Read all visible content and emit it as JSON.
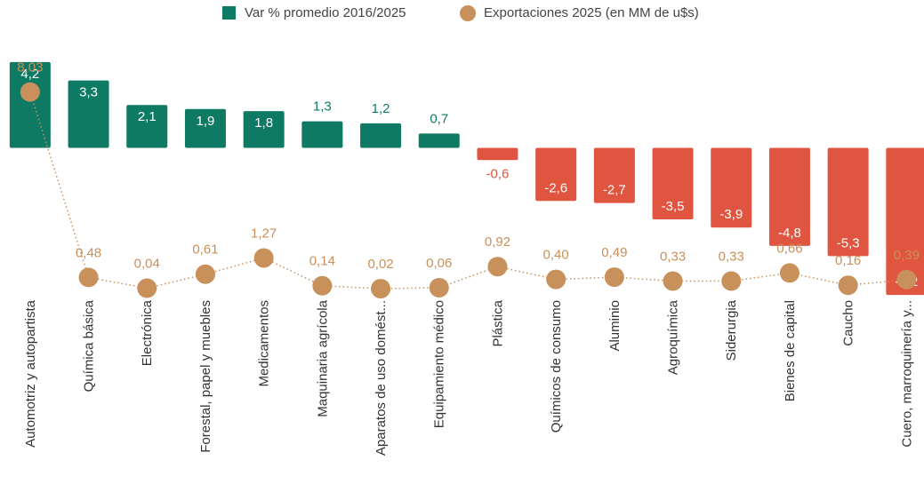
{
  "chart_data": {
    "type": "bar-line",
    "categories": [
      "Automotriz y autopartista",
      "Química básica",
      "Electrónica",
      "Forestal, papel y muebles",
      "Medicamentos",
      "Maquinaria agrícola",
      "Aparatos de uso domést...",
      "Equipamiento médico",
      "Plástica",
      "Químicos de consumo",
      "Aluminio",
      "Agroquímica",
      "Siderurgia",
      "Bienes de capital",
      "Caucho",
      "Cuero, marroquinería y..."
    ],
    "series": [
      {
        "name": "Var % promedio 2016/2025",
        "type": "bar",
        "color": "#0f7a63",
        "negative_color": "#e0553f",
        "values": [
          4.2,
          3.3,
          2.1,
          1.9,
          1.8,
          1.3,
          1.2,
          0.7,
          -0.6,
          -2.6,
          -2.7,
          -3.5,
          -3.9,
          -4.8,
          -5.3,
          -7.2
        ],
        "value_labels": [
          "4,2",
          "3,3",
          "2,1",
          "1,9",
          "1,8",
          "1,3",
          "1,2",
          "0,7",
          "-0,6",
          "-2,6",
          "-2,7",
          "-3,5",
          "-3,9",
          "-4,8",
          "-5,3",
          "-7,2"
        ]
      },
      {
        "name": "Exportaciones 2025 (en MM de u$s)",
        "type": "line",
        "axis": "y2",
        "color": "#c8905a",
        "values": [
          8.03,
          0.48,
          0.04,
          0.61,
          1.27,
          0.14,
          0.02,
          0.06,
          0.92,
          0.4,
          0.49,
          0.33,
          0.33,
          0.66,
          0.16,
          0.39
        ],
        "value_labels": [
          "8,03",
          "0,48",
          "0,04",
          "0,61",
          "1,27",
          "0,14",
          "0,02",
          "0,06",
          "0,92",
          "0,40",
          "0,49",
          "0,33",
          "0,33",
          "0,66",
          "0,16",
          "0,39"
        ]
      }
    ],
    "ylim": [
      -8,
      4.5
    ],
    "y2lim": [
      -0.9,
      9.5
    ]
  }
}
